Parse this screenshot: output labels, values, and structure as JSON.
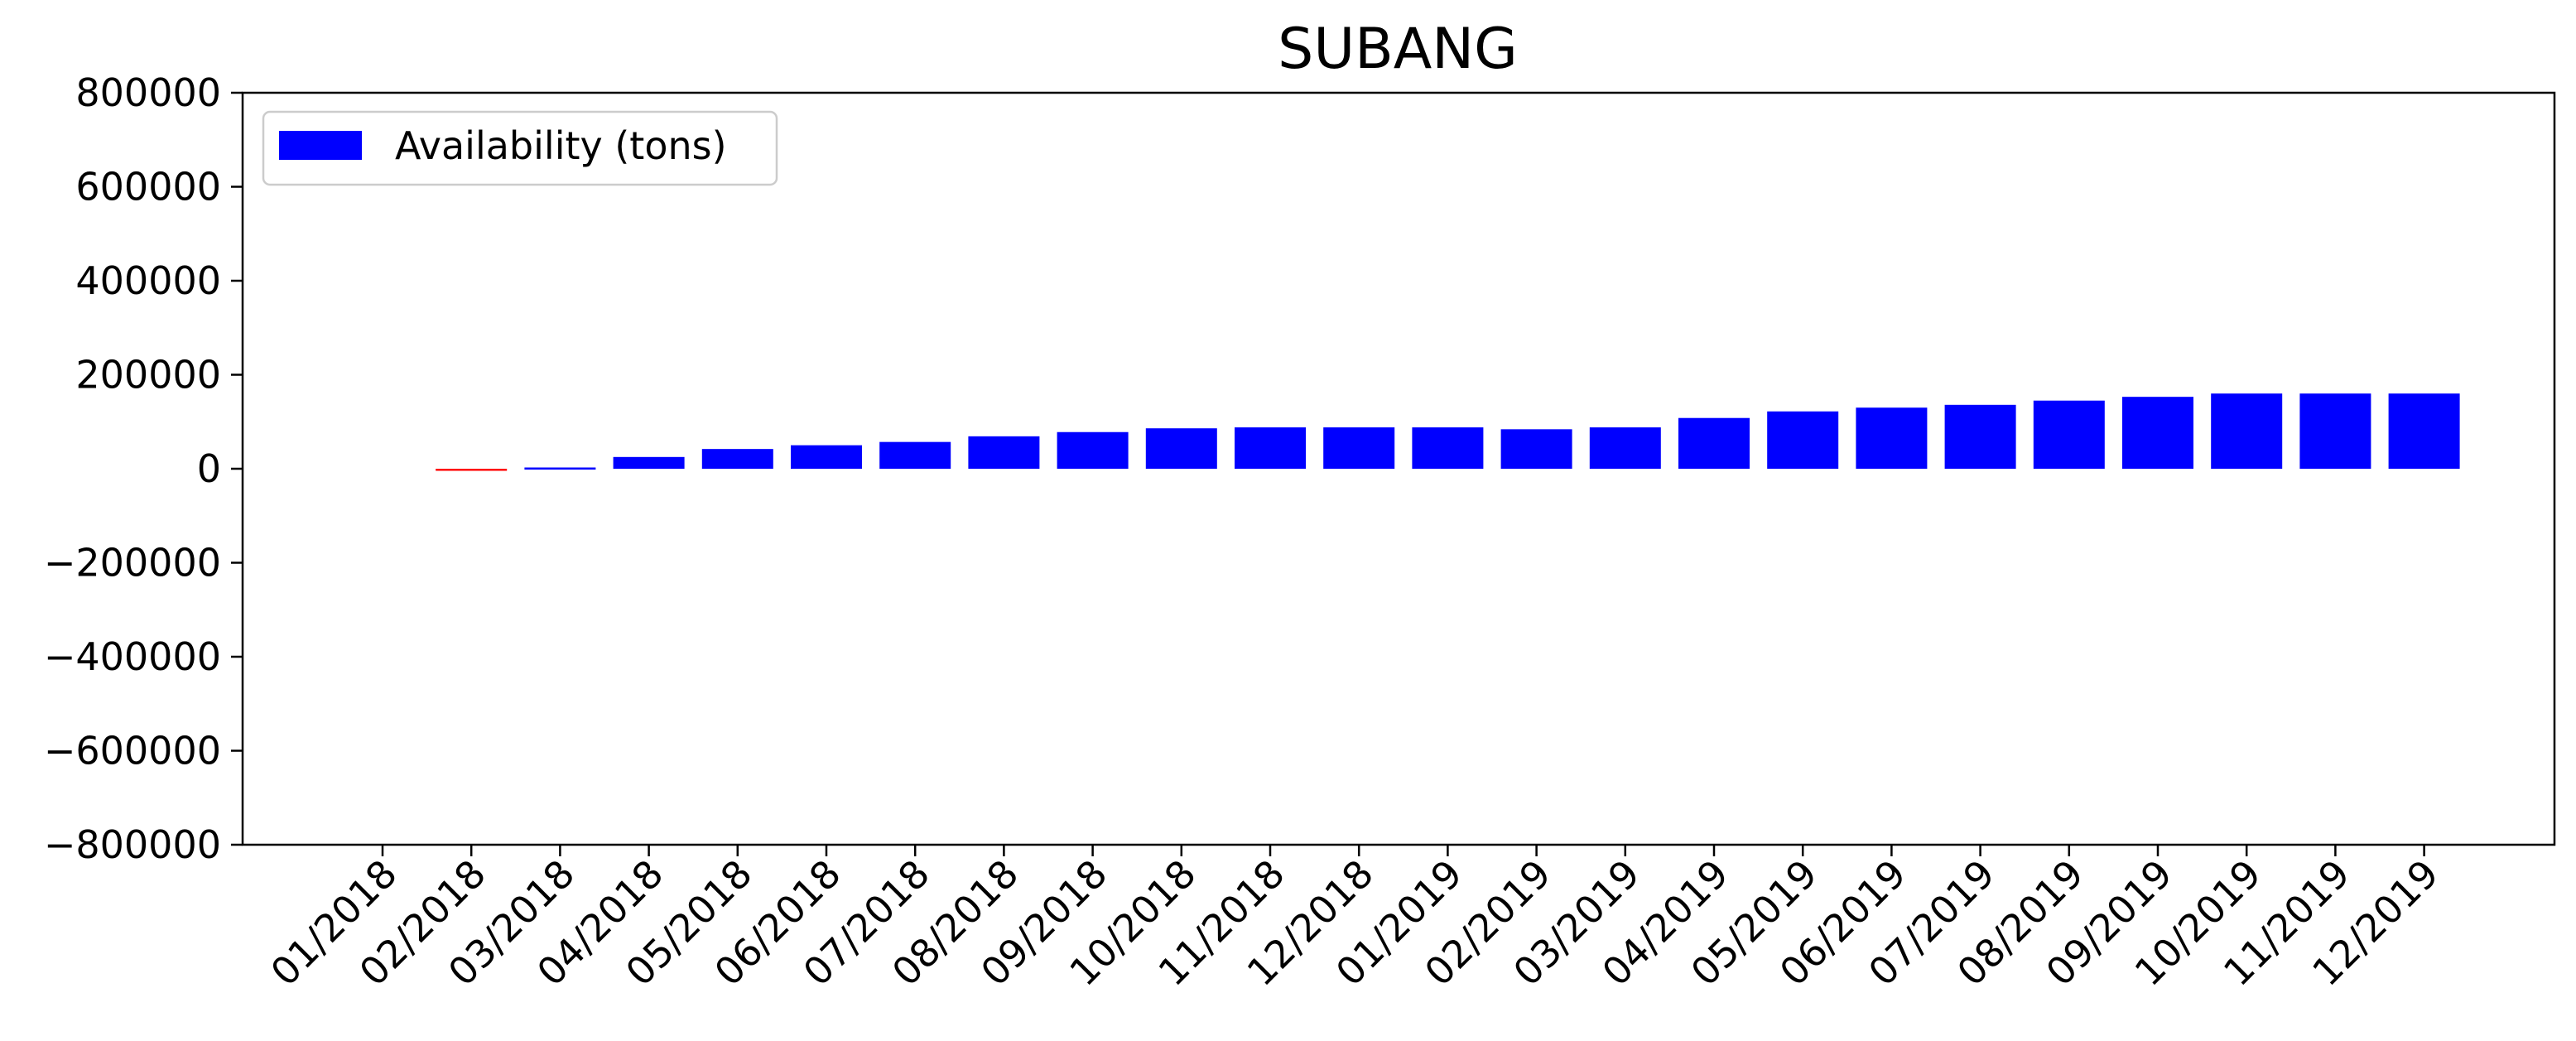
{
  "chart_data": {
    "type": "bar",
    "title": "SUBANG",
    "xlabel": "",
    "ylabel": "",
    "ylim": [
      -800000,
      800000
    ],
    "yticks": [
      800000,
      600000,
      400000,
      200000,
      0,
      -200000,
      -400000,
      -600000,
      -800000
    ],
    "ytick_labels": [
      "800000",
      "600000",
      "400000",
      "200000",
      "0",
      "−200000",
      "−400000",
      "−600000",
      "−800000"
    ],
    "categories": [
      "01/2018",
      "02/2018",
      "03/2018",
      "04/2018",
      "05/2018",
      "06/2018",
      "07/2018",
      "08/2018",
      "09/2018",
      "10/2018",
      "11/2018",
      "12/2018",
      "01/2019",
      "02/2019",
      "03/2019",
      "04/2019",
      "05/2019",
      "06/2019",
      "07/2019",
      "08/2019",
      "09/2019",
      "10/2019",
      "11/2019",
      "12/2019"
    ],
    "series": [
      {
        "name": "Availability (tons)",
        "color": "#0000ff",
        "negative_color": "#ff0000",
        "values": [
          0,
          -2000,
          3000,
          25000,
          42000,
          50000,
          57000,
          69000,
          78000,
          86000,
          88000,
          88000,
          88000,
          84000,
          88000,
          108000,
          122000,
          130000,
          136000,
          145000,
          153000,
          160000,
          160000,
          160000
        ]
      }
    ],
    "legend": {
      "position": "top-left",
      "label": "Availability (tons)"
    },
    "grid": false
  }
}
